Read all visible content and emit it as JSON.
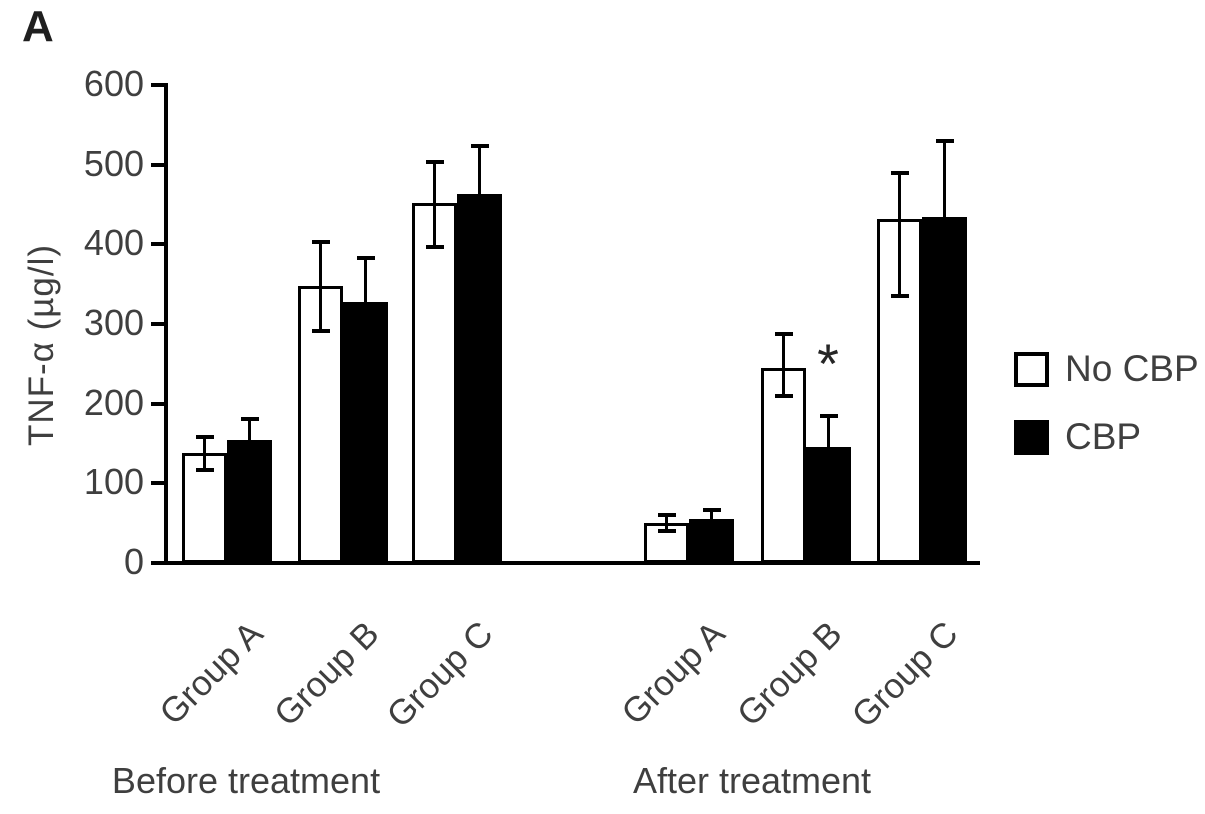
{
  "panel_label": "A",
  "chart_data": {
    "type": "bar",
    "title": "",
    "ylabel": "TNF-α (µg/l)",
    "ylim": [
      0,
      600
    ],
    "yticks": [
      0,
      100,
      200,
      300,
      400,
      500,
      600
    ],
    "grid": false,
    "legend_position": "right",
    "clusters": [
      {
        "key": "before",
        "label": "Before treatment"
      },
      {
        "key": "after",
        "label": "After treatment"
      }
    ],
    "categories": [
      "Group A",
      "Group B",
      "Group C"
    ],
    "series": [
      {
        "name": "No CBP",
        "fill": "#ffffff",
        "outline": "#000000",
        "values": {
          "before": [
            138,
            348,
            452
          ],
          "after": [
            50,
            245,
            432
          ]
        },
        "err_up": {
          "before": [
            22,
            56,
            53
          ],
          "after": [
            11,
            44,
            59
          ]
        },
        "err_down": {
          "before": [
            23,
            58,
            57
          ],
          "after": [
            11,
            37,
            98
          ]
        }
      },
      {
        "name": "CBP",
        "fill": "#000000",
        "outline": "#000000",
        "values": {
          "before": [
            155,
            327,
            463
          ],
          "after": [
            55,
            146,
            434
          ]
        },
        "err_up": {
          "before": [
            27,
            57,
            62
          ],
          "after": [
            13,
            40,
            97
          ]
        },
        "err_down": {
          "before": [
            27,
            57,
            62
          ],
          "after": [
            13,
            40,
            97
          ]
        }
      }
    ],
    "annotations": [
      {
        "text": "*",
        "cluster": "After treatment",
        "category": "Group B",
        "series": "CBP"
      }
    ],
    "colors": {
      "bar_fill_dark": "#000000",
      "bar_outline": "#000000",
      "axis": "#000000",
      "text": "#3f3f3f"
    }
  }
}
